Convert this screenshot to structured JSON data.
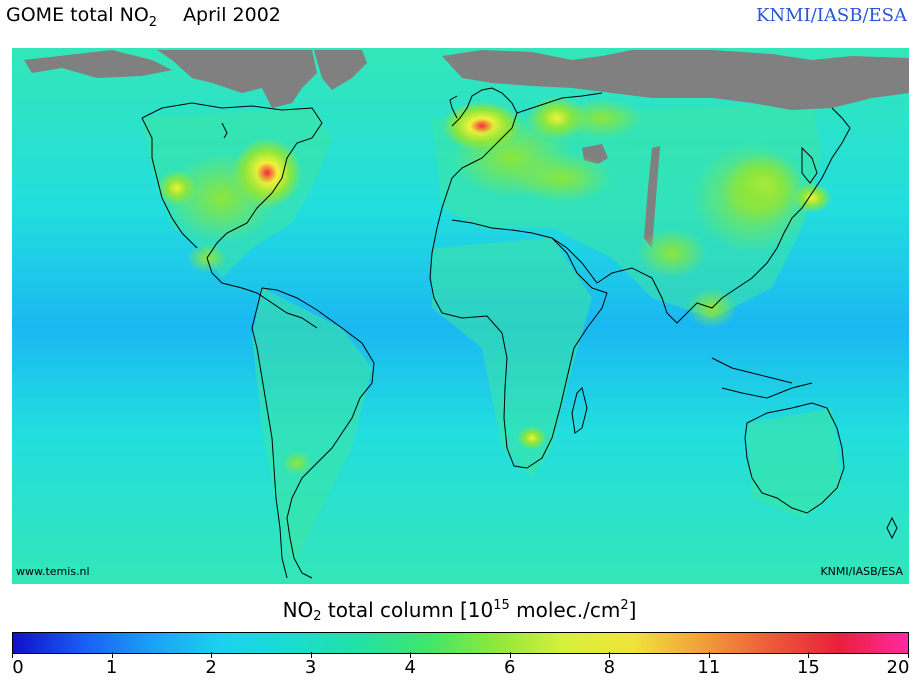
{
  "title": {
    "text": "GOME total NO",
    "sub": "2",
    "date": "April 2002"
  },
  "credit_top": "KNMI/IASB/ESA",
  "map": {
    "credit_left": "www.temis.nl",
    "credit_right": "KNMI/IASB/ESA",
    "colors": {
      "ocean_high_lat": "#33e6b8",
      "ocean_mid": "#22dede",
      "ocean_tropics": "#1ab8f2",
      "land_background": "#3ee6a0",
      "no_data": "#808080",
      "polluted_moderate": "#8ce63c",
      "polluted_high": "#f2f23a",
      "polluted_peak": "#f5213c"
    }
  },
  "colorbar": {
    "label_pre": "NO",
    "label_sub": "2",
    "label_mid": " total column [10",
    "label_sup_exp": "15",
    "label_unit": " molec./cm",
    "label_sup_2": "2",
    "label_end": "]",
    "ticks": [
      "0",
      "1",
      "2",
      "3",
      "4",
      "6",
      "8",
      "11",
      "15",
      "20"
    ],
    "colors": [
      "#1010c8",
      "#1a5cf5",
      "#1aa0f5",
      "#1ad2ee",
      "#1adcd0",
      "#22e0a8",
      "#3ee66e",
      "#8ee83a",
      "#d6f03a",
      "#f0e43a",
      "#f0a03a",
      "#ee5a3a",
      "#e8203c",
      "#ff2aa0"
    ]
  }
}
